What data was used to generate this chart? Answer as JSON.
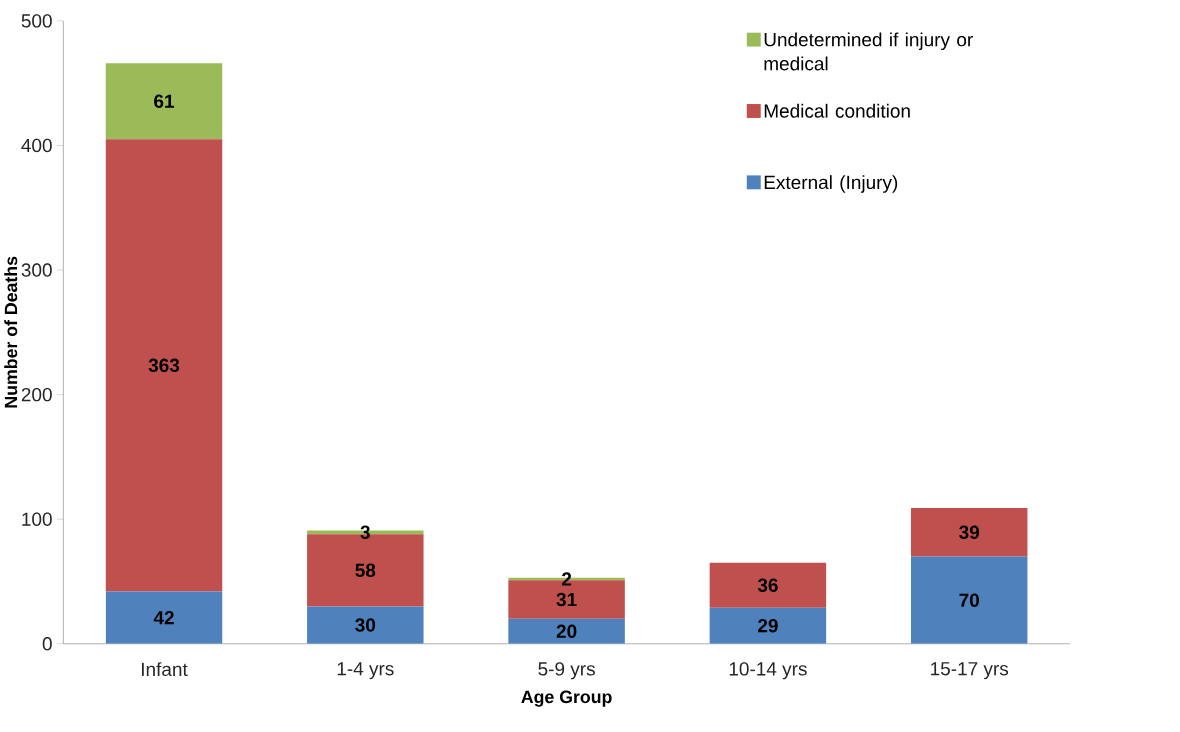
{
  "chart_data": {
    "type": "bar",
    "stacked": true,
    "xlabel": "Age Group",
    "ylabel": "Number of Deaths",
    "categories": [
      "Infant",
      "1-4 yrs",
      "5-9 yrs",
      "10-14 yrs",
      "15-17 yrs"
    ],
    "series": [
      {
        "name": "External (Injury)",
        "color": "#4f81bd",
        "values": [
          42,
          30,
          20,
          29,
          70
        ]
      },
      {
        "name": "Medical condition",
        "color": "#c0504d",
        "values": [
          363,
          58,
          31,
          36,
          39
        ]
      },
      {
        "name": "Undetermined if injury or medical",
        "color": "#9bbb59",
        "values": [
          61,
          3,
          2,
          null,
          null
        ]
      }
    ],
    "ylim": [
      0,
      500
    ],
    "yticks": [
      0,
      100,
      200,
      300,
      400,
      500
    ],
    "data_labels": true,
    "grid": false,
    "legend": "top right"
  }
}
